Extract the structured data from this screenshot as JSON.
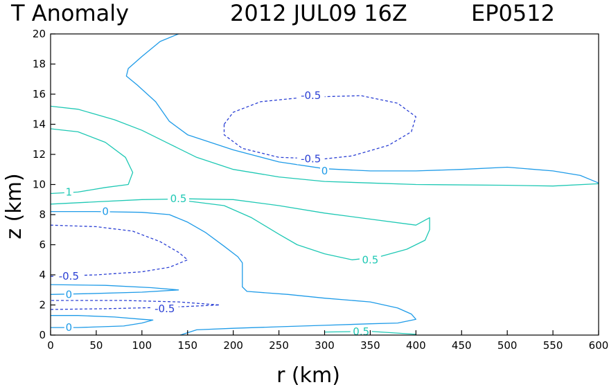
{
  "title": {
    "left": "T Anomaly",
    "date": "2012 JUL09 16Z",
    "storm": "EP0512"
  },
  "chart_data": {
    "type": "contour",
    "xlabel": "r (km)",
    "ylabel": "z (km)",
    "xlim": [
      0,
      600
    ],
    "ylim": [
      0,
      20
    ],
    "xticks": [
      0,
      50,
      100,
      150,
      200,
      250,
      300,
      350,
      400,
      450,
      500,
      550,
      600
    ],
    "yticks": [
      0,
      2,
      4,
      6,
      8,
      10,
      12,
      14,
      16,
      18,
      20
    ],
    "grid": false,
    "colors": {
      "level_0": "#1e9be8",
      "level_0_5": "#1ec8b4",
      "level_1": "#1ec8b4",
      "level_neg_0_5": "#2a3fd4"
    },
    "contours": [
      {
        "level": 0,
        "color_key": "level_0",
        "dashed": false,
        "points": [
          [
            0,
            0.5
          ],
          [
            30,
            0.5
          ],
          [
            80,
            0.6
          ],
          [
            100,
            0.8
          ],
          [
            112,
            1.0
          ],
          [
            100,
            1.05
          ],
          [
            70,
            1.2
          ],
          [
            30,
            1.3
          ],
          [
            0,
            1.3
          ]
        ]
      },
      {
        "level": 0,
        "color_key": "level_0",
        "dashed": false,
        "points": [
          [
            0,
            2.7
          ],
          [
            40,
            2.75
          ],
          [
            100,
            2.85
          ],
          [
            140,
            3.0
          ],
          [
            110,
            3.15
          ],
          [
            60,
            3.3
          ],
          [
            0,
            3.35
          ]
        ]
      },
      {
        "level": 0,
        "color_key": "level_0",
        "dashed": false,
        "points": [
          [
            142,
            0
          ],
          [
            160,
            0.35
          ],
          [
            200,
            0.45
          ],
          [
            250,
            0.55
          ],
          [
            300,
            0.65
          ],
          [
            350,
            0.75
          ],
          [
            380,
            0.8
          ],
          [
            400,
            1.05
          ],
          [
            395,
            1.4
          ],
          [
            380,
            1.8
          ],
          [
            350,
            2.2
          ],
          [
            300,
            2.45
          ],
          [
            260,
            2.7
          ],
          [
            215,
            2.9
          ],
          [
            210,
            3.2
          ],
          [
            210,
            4.0
          ],
          [
            210,
            4.8
          ],
          [
            205,
            5.2
          ],
          [
            190,
            5.9
          ],
          [
            170,
            6.8
          ],
          [
            150,
            7.5
          ],
          [
            130,
            8.0
          ],
          [
            100,
            8.15
          ],
          [
            50,
            8.2
          ],
          [
            0,
            8.2
          ]
        ]
      },
      {
        "level": 0,
        "color_key": "level_0",
        "dashed": false,
        "points": [
          [
            140,
            20
          ],
          [
            120,
            19.5
          ],
          [
            100,
            18.5
          ],
          [
            85,
            17.7
          ],
          [
            83,
            17.2
          ],
          [
            95,
            16.6
          ],
          [
            115,
            15.5
          ],
          [
            130,
            14.2
          ],
          [
            150,
            13.3
          ],
          [
            200,
            12.3
          ],
          [
            250,
            11.5
          ],
          [
            300,
            11.05
          ],
          [
            350,
            10.9
          ],
          [
            400,
            10.9
          ],
          [
            450,
            11.0
          ],
          [
            500,
            11.15
          ],
          [
            550,
            10.9
          ],
          [
            580,
            10.6
          ],
          [
            600,
            10.1
          ]
        ]
      },
      {
        "level": 0.5,
        "color_key": "level_0_5",
        "dashed": false,
        "points": [
          [
            0,
            8.7
          ],
          [
            50,
            8.85
          ],
          [
            100,
            9.0
          ],
          [
            150,
            9.05
          ],
          [
            200,
            9.0
          ],
          [
            250,
            8.6
          ],
          [
            300,
            8.1
          ],
          [
            350,
            7.7
          ],
          [
            400,
            7.3
          ],
          [
            415,
            7.8
          ],
          [
            415,
            7.0
          ],
          [
            410,
            6.3
          ],
          [
            390,
            5.7
          ],
          [
            360,
            5.2
          ],
          [
            330,
            5.0
          ],
          [
            300,
            5.4
          ],
          [
            270,
            6.0
          ],
          [
            250,
            6.7
          ],
          [
            220,
            7.8
          ],
          [
            190,
            8.6
          ],
          [
            150,
            8.9
          ]
        ]
      },
      {
        "level": 0.5,
        "color_key": "level_0_5",
        "dashed": false,
        "points": [
          [
            0,
            15.2
          ],
          [
            30,
            15.0
          ],
          [
            70,
            14.3
          ],
          [
            100,
            13.6
          ],
          [
            130,
            12.7
          ],
          [
            160,
            11.8
          ],
          [
            200,
            11.0
          ],
          [
            250,
            10.5
          ],
          [
            300,
            10.2
          ],
          [
            350,
            10.1
          ],
          [
            400,
            10.0
          ],
          [
            500,
            9.95
          ],
          [
            550,
            9.9
          ],
          [
            600,
            10.05
          ]
        ]
      },
      {
        "level": 0.5,
        "color_key": "level_0_5",
        "dashed": false,
        "points": [
          [
            300,
            0.2
          ],
          [
            350,
            0.25
          ],
          [
            400,
            0.05
          ]
        ]
      },
      {
        "level": 1,
        "color_key": "level_1",
        "dashed": false,
        "points": [
          [
            0,
            13.7
          ],
          [
            30,
            13.5
          ],
          [
            60,
            12.8
          ],
          [
            82,
            11.8
          ],
          [
            90,
            10.8
          ],
          [
            85,
            10.0
          ],
          [
            60,
            9.8
          ],
          [
            30,
            9.5
          ],
          [
            0,
            9.4
          ]
        ]
      },
      {
        "level": -0.5,
        "color_key": "level_neg_0_5",
        "dashed": true,
        "points": [
          [
            0,
            1.7
          ],
          [
            60,
            1.75
          ],
          [
            130,
            1.85
          ],
          [
            185,
            2.0
          ],
          [
            140,
            2.2
          ],
          [
            80,
            2.3
          ],
          [
            0,
            2.3
          ]
        ]
      },
      {
        "level": -0.5,
        "color_key": "level_neg_0_5",
        "dashed": true,
        "points": [
          [
            0,
            3.9
          ],
          [
            50,
            4.0
          ],
          [
            100,
            4.2
          ],
          [
            130,
            4.5
          ],
          [
            150,
            5.0
          ],
          [
            140,
            5.5
          ],
          [
            120,
            6.2
          ],
          [
            90,
            6.9
          ],
          [
            50,
            7.2
          ],
          [
            0,
            7.3
          ]
        ]
      },
      {
        "level": -0.5,
        "color_key": "level_neg_0_5",
        "dashed": true,
        "points": [
          [
            190,
            14.0
          ],
          [
            200,
            14.8
          ],
          [
            230,
            15.5
          ],
          [
            280,
            15.8
          ],
          [
            340,
            15.9
          ],
          [
            380,
            15.4
          ],
          [
            400,
            14.5
          ],
          [
            395,
            13.5
          ],
          [
            370,
            12.6
          ],
          [
            330,
            11.9
          ],
          [
            300,
            11.7
          ],
          [
            250,
            11.8
          ],
          [
            210,
            12.4
          ],
          [
            190,
            13.3
          ],
          [
            190,
            14.0
          ]
        ]
      }
    ],
    "labels": [
      {
        "text": "0",
        "x": 20,
        "y": 0.5,
        "color_key": "level_0"
      },
      {
        "text": "0",
        "x": 20,
        "y": 2.7,
        "color_key": "level_0"
      },
      {
        "text": "-0.5",
        "x": 20,
        "y": 3.9,
        "color_key": "level_neg_0_5"
      },
      {
        "text": "-0.5",
        "x": 125,
        "y": 1.75,
        "color_key": "level_neg_0_5"
      },
      {
        "text": "0",
        "x": 60,
        "y": 8.2,
        "color_key": "level_0"
      },
      {
        "text": "0.5",
        "x": 140,
        "y": 9.05,
        "color_key": "level_0_5"
      },
      {
        "text": "1",
        "x": 20,
        "y": 9.5,
        "color_key": "level_1"
      },
      {
        "text": "0.5",
        "x": 350,
        "y": 5.0,
        "color_key": "level_0_5"
      },
      {
        "text": "0",
        "x": 300,
        "y": 10.9,
        "color_key": "level_0"
      },
      {
        "text": "-0.5",
        "x": 285,
        "y": 11.7,
        "color_key": "level_neg_0_5"
      },
      {
        "text": "-0.5",
        "x": 285,
        "y": 15.9,
        "color_key": "level_neg_0_5"
      },
      {
        "text": "0.5",
        "x": 340,
        "y": 0.22,
        "color_key": "level_0_5"
      }
    ]
  }
}
